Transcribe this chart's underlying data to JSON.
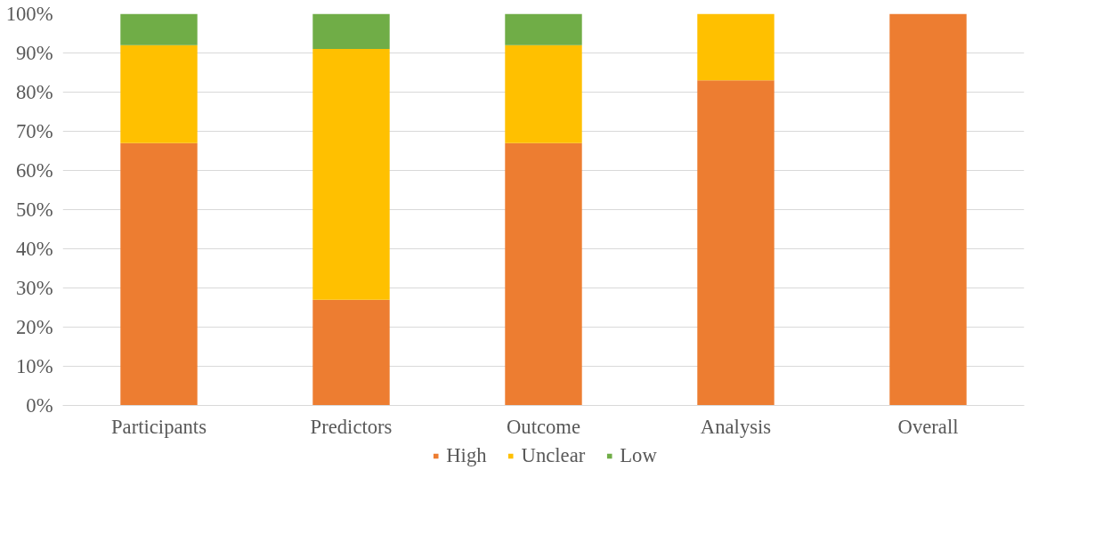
{
  "chart_data": {
    "type": "bar",
    "stacked": true,
    "categories": [
      "Participants",
      "Predictors",
      "Outcome",
      "Analysis",
      "Overall"
    ],
    "series": [
      {
        "name": "High",
        "color": "#ed7d31",
        "values": [
          67,
          27,
          67,
          83,
          100
        ]
      },
      {
        "name": "Unclear",
        "color": "#ffc000",
        "values": [
          25,
          64,
          25,
          17,
          0
        ]
      },
      {
        "name": "Low",
        "color": "#70ad47",
        "values": [
          8,
          9,
          8,
          0,
          0
        ]
      }
    ],
    "ylim": [
      0,
      100
    ],
    "yticks": [
      {
        "value": 0,
        "label": "0%"
      },
      {
        "value": 10,
        "label": "10%"
      },
      {
        "value": 20,
        "label": "20%"
      },
      {
        "value": 30,
        "label": "30%"
      },
      {
        "value": 40,
        "label": "40%"
      },
      {
        "value": 50,
        "label": "50%"
      },
      {
        "value": 60,
        "label": "60%"
      },
      {
        "value": 70,
        "label": "70%"
      },
      {
        "value": 80,
        "label": "80%"
      },
      {
        "value": 90,
        "label": "90%"
      },
      {
        "value": 100,
        "label": "100%"
      }
    ],
    "grid": "y",
    "legend": "bottom"
  }
}
